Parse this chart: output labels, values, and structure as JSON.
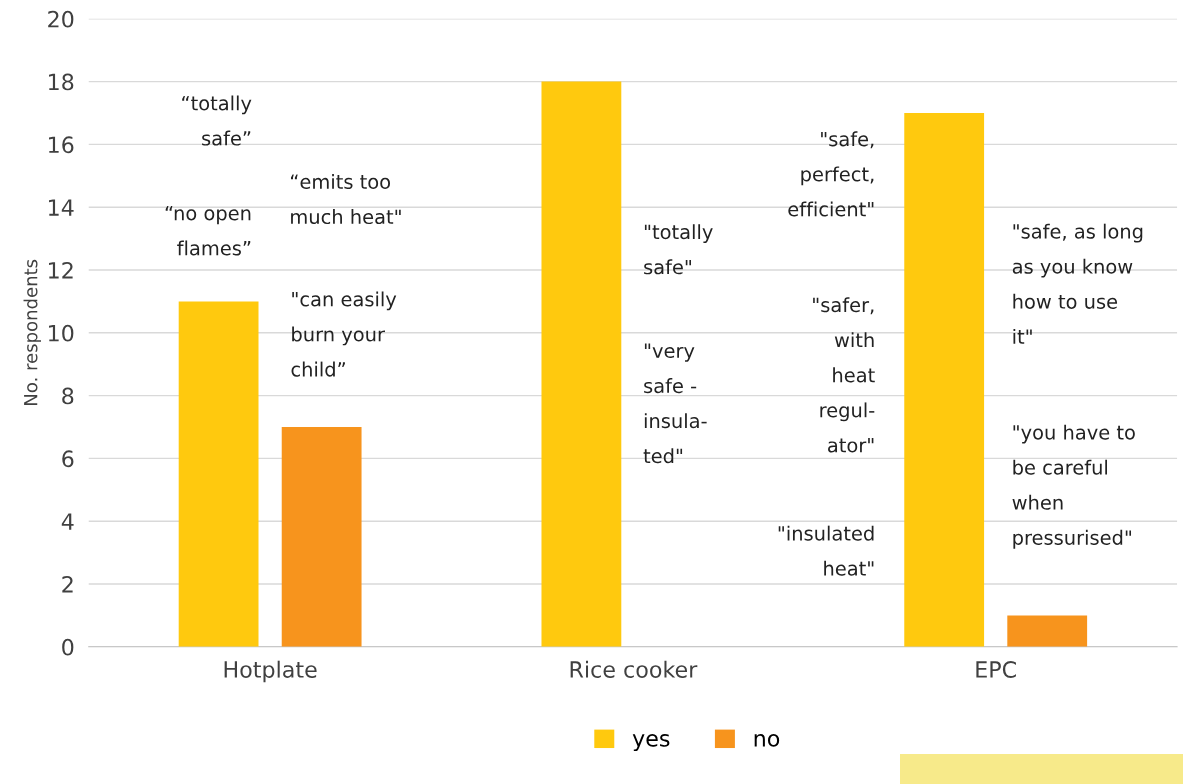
{
  "chart_data": {
    "type": "bar",
    "ylabel": "No. respondents",
    "categories": [
      "Hotplate",
      "Rice cooker",
      "EPC"
    ],
    "series": [
      {
        "name": "yes",
        "color": "#ffc90e",
        "values": [
          11,
          18,
          17
        ]
      },
      {
        "name": "no",
        "color": "#f7941d",
        "values": [
          7,
          0,
          1
        ]
      }
    ],
    "ylim": [
      0,
      20
    ],
    "yticks": [
      0,
      2,
      4,
      6,
      8,
      10,
      12,
      14,
      16,
      18,
      20
    ],
    "grid": "y",
    "legend": "bottom",
    "annotations": [
      "“totally\nsafe”",
      "“no open\nflames”",
      "“emits too\nmuch heat\"",
      "\"can easily\nburn your\nchild”",
      "\"totally\nsafe\"",
      "\"very\nsafe -\ninsula-\nted\"",
      "\"safe,\nperfect,\nefficient\"",
      "\"safer,\nwith\nheat\nregul-\nator\"",
      "\"insulated\nheat\"",
      "\"safe, as long\nas you know\nhow to use\nit\"",
      "\"you have to\nbe careful\nwhen\npressurised\""
    ]
  }
}
